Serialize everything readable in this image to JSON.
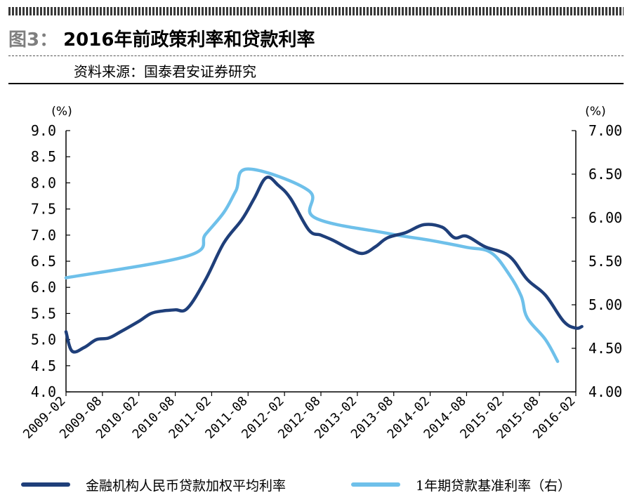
{
  "header": {
    "figure_label": "图3：",
    "title": "2016年前政策利率和贷款利率",
    "source": "资料来源：国泰君安证券研究"
  },
  "colors": {
    "series_dark": "#1f3f7a",
    "series_light": "#6ec0ea"
  },
  "chart_data": {
    "type": "line",
    "x_ticks": [
      "2009-02",
      "2009-08",
      "2010-02",
      "2010-08",
      "2011-02",
      "2011-08",
      "2012-02",
      "2012-08",
      "2013-02",
      "2013-08",
      "2014-02",
      "2014-08",
      "2015-02",
      "2015-08",
      "2016-02"
    ],
    "left_axis": {
      "unit": "(%)",
      "range": [
        4.0,
        9.0
      ],
      "ticks": [
        "9.0",
        "8.5",
        "8.0",
        "7.5",
        "7.0",
        "6.5",
        "6.0",
        "5.5",
        "5.0",
        "4.5",
        "4.0"
      ]
    },
    "right_axis": {
      "unit": "(%)",
      "range": [
        4.0,
        7.0
      ],
      "ticks": [
        "7.00",
        "6.50",
        "6.00",
        "5.50",
        "5.00",
        "4.50",
        "4.00"
      ]
    },
    "series": [
      {
        "name": "金融机构人民币贷款加权平均利率",
        "axis": "left",
        "points": [
          [
            "2009-02",
            5.15
          ],
          [
            "2009-03",
            4.78
          ],
          [
            "2009-05",
            4.85
          ],
          [
            "2009-07",
            5.0
          ],
          [
            "2009-09",
            5.03
          ],
          [
            "2009-11",
            5.15
          ],
          [
            "2010-02",
            5.35
          ],
          [
            "2010-04",
            5.5
          ],
          [
            "2010-06",
            5.55
          ],
          [
            "2010-08",
            5.57
          ],
          [
            "2010-10",
            5.6
          ],
          [
            "2011-01",
            6.15
          ],
          [
            "2011-04",
            6.85
          ],
          [
            "2011-07",
            7.3
          ],
          [
            "2011-09",
            7.7
          ],
          [
            "2011-11",
            8.1
          ],
          [
            "2012-01",
            7.95
          ],
          [
            "2012-03",
            7.7
          ],
          [
            "2012-06",
            7.1
          ],
          [
            "2012-08",
            7.0
          ],
          [
            "2012-10",
            6.9
          ],
          [
            "2013-01",
            6.72
          ],
          [
            "2013-03",
            6.65
          ],
          [
            "2013-05",
            6.78
          ],
          [
            "2013-07",
            6.95
          ],
          [
            "2013-10",
            7.05
          ],
          [
            "2014-01",
            7.2
          ],
          [
            "2014-04",
            7.15
          ],
          [
            "2014-06",
            6.95
          ],
          [
            "2014-08",
            6.98
          ],
          [
            "2014-11",
            6.78
          ],
          [
            "2015-03",
            6.6
          ],
          [
            "2015-06",
            6.15
          ],
          [
            "2015-09",
            5.85
          ],
          [
            "2015-12",
            5.35
          ],
          [
            "2016-02",
            5.22
          ],
          [
            "2016-03",
            5.25
          ]
        ]
      },
      {
        "name": "1年期贷款基准利率（右）",
        "axis": "right",
        "points": [
          [
            "2009-02",
            5.31
          ],
          [
            "2010-10",
            5.56
          ],
          [
            "2011-01",
            5.81
          ],
          [
            "2011-04",
            6.06
          ],
          [
            "2011-06",
            6.31
          ],
          [
            "2011-08",
            6.56
          ],
          [
            "2012-06",
            6.31
          ],
          [
            "2012-07",
            6.0
          ],
          [
            "2013-07",
            5.82
          ],
          [
            "2014-02",
            5.74
          ],
          [
            "2014-08",
            5.66
          ],
          [
            "2014-12",
            5.6
          ],
          [
            "2015-03",
            5.35
          ],
          [
            "2015-05",
            5.1
          ],
          [
            "2015-06",
            4.85
          ],
          [
            "2015-09",
            4.6
          ],
          [
            "2015-11",
            4.35
          ]
        ]
      }
    ]
  }
}
